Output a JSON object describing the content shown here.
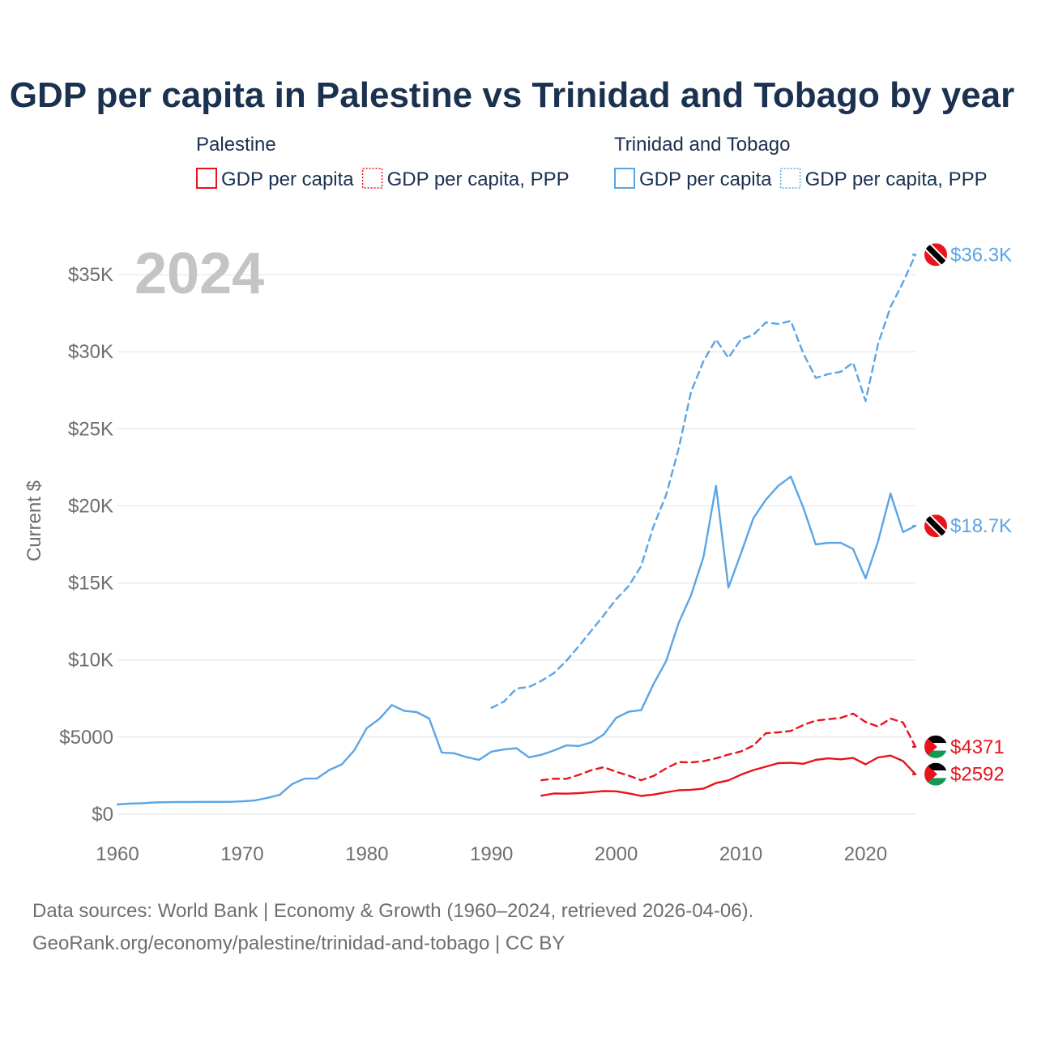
{
  "colors": {
    "palestine": "#e8141b",
    "trinidad": "#5aa5e6",
    "title": "#1b3150",
    "axis_text": "#6e6e6e",
    "grid": "#e6e6e6",
    "year_watermark": "#c4c4c4",
    "source_text": "#6e6e6e"
  },
  "legend": {
    "groups": [
      {
        "name": "Palestine",
        "color_key": "palestine",
        "items": [
          {
            "label": "GDP per capita",
            "style": "solid"
          },
          {
            "label": "GDP per capita, PPP",
            "style": "dotted"
          }
        ]
      },
      {
        "name": "Trinidad and Tobago",
        "color_key": "trinidad",
        "items": [
          {
            "label": "GDP per capita",
            "style": "solid"
          },
          {
            "label": "GDP per capita, PPP",
            "style": "dotted"
          }
        ]
      }
    ]
  },
  "year_label": "2024",
  "source": {
    "line1": "Data sources: World Bank | Economy & Growth (1960–2024, retrieved 2026-04-06).",
    "line2": "GeoRank.org/economy/palestine/trinidad-and-tobago | CC BY"
  },
  "chart_data": {
    "type": "line",
    "title": "GDP per capita in Palestine vs Trinidad and Tobago by year",
    "xlabel": "",
    "ylabel": "Current $",
    "xlim": [
      1960,
      2024
    ],
    "ylim": [
      0,
      37000
    ],
    "x_ticks": [
      1960,
      1970,
      1980,
      1990,
      2000,
      2010,
      2020
    ],
    "y_ticks": [
      {
        "value": 0,
        "label": "$0"
      },
      {
        "value": 5000,
        "label": "$5000"
      },
      {
        "value": 10000,
        "label": "$10K"
      },
      {
        "value": 15000,
        "label": "$15K"
      },
      {
        "value": 20000,
        "label": "$20K"
      },
      {
        "value": 25000,
        "label": "$25K"
      },
      {
        "value": 30000,
        "label": "$30K"
      },
      {
        "value": 35000,
        "label": "$35K"
      }
    ],
    "grid": true,
    "series": [
      {
        "id": "tt-gdp-ppp",
        "name": "Trinidad and Tobago — GDP per capita, PPP",
        "country": "Trinidad and Tobago",
        "color_key": "trinidad",
        "dashed": true,
        "end_label": "$36.3K",
        "start_year": 1990,
        "values": [
          6900,
          7300,
          8150,
          8250,
          8650,
          9150,
          9950,
          10900,
          11900,
          12900,
          13950,
          14800,
          16100,
          18700,
          20700,
          23700,
          27400,
          29400,
          30800,
          29600,
          30800,
          31100,
          31900,
          31800,
          32000,
          29900,
          28300,
          28550,
          28700,
          29300,
          26800,
          30500,
          32900,
          34500,
          36300
        ]
      },
      {
        "id": "tt-gdp",
        "name": "Trinidad and Tobago — GDP per capita",
        "country": "Trinidad and Tobago",
        "color_key": "trinidad",
        "dashed": false,
        "end_label": "$18.7K",
        "start_year": 1960,
        "values": [
          630,
          690,
          710,
          760,
          780,
          790,
          790,
          800,
          800,
          800,
          830,
          890,
          1050,
          1250,
          1950,
          2300,
          2320,
          2870,
          3230,
          4150,
          5580,
          6180,
          7080,
          6700,
          6620,
          6200,
          4000,
          3950,
          3700,
          3520,
          4060,
          4200,
          4280,
          3690,
          3850,
          4130,
          4460,
          4420,
          4660,
          5170,
          6250,
          6650,
          6750,
          8450,
          9930,
          12400,
          14200,
          16700,
          21300,
          14700,
          16900,
          19200,
          20400,
          21300,
          21900,
          19900,
          17500,
          17600,
          17600,
          17200,
          15300,
          17700,
          20800,
          18300,
          18700
        ]
      },
      {
        "id": "ps-gdp-ppp",
        "name": "Palestine — GDP per capita, PPP",
        "country": "Palestine",
        "color_key": "palestine",
        "dashed": true,
        "end_label": "$4371",
        "start_year": 1994,
        "values": [
          2200,
          2300,
          2290,
          2550,
          2850,
          3050,
          2750,
          2500,
          2200,
          2480,
          2970,
          3380,
          3360,
          3440,
          3620,
          3870,
          4070,
          4450,
          5250,
          5310,
          5400,
          5780,
          6070,
          6160,
          6250,
          6520,
          5980,
          5680,
          6200,
          5950,
          4371
        ]
      },
      {
        "id": "ps-gdp",
        "name": "Palestine — GDP per capita",
        "country": "Palestine",
        "color_key": "palestine",
        "dashed": false,
        "end_label": "$2592",
        "start_year": 1994,
        "values": [
          1200,
          1340,
          1330,
          1360,
          1430,
          1500,
          1480,
          1350,
          1180,
          1270,
          1420,
          1550,
          1580,
          1660,
          2020,
          2190,
          2560,
          2860,
          3080,
          3310,
          3330,
          3270,
          3520,
          3620,
          3560,
          3650,
          3230,
          3680,
          3800,
          3450,
          2592
        ]
      }
    ]
  }
}
